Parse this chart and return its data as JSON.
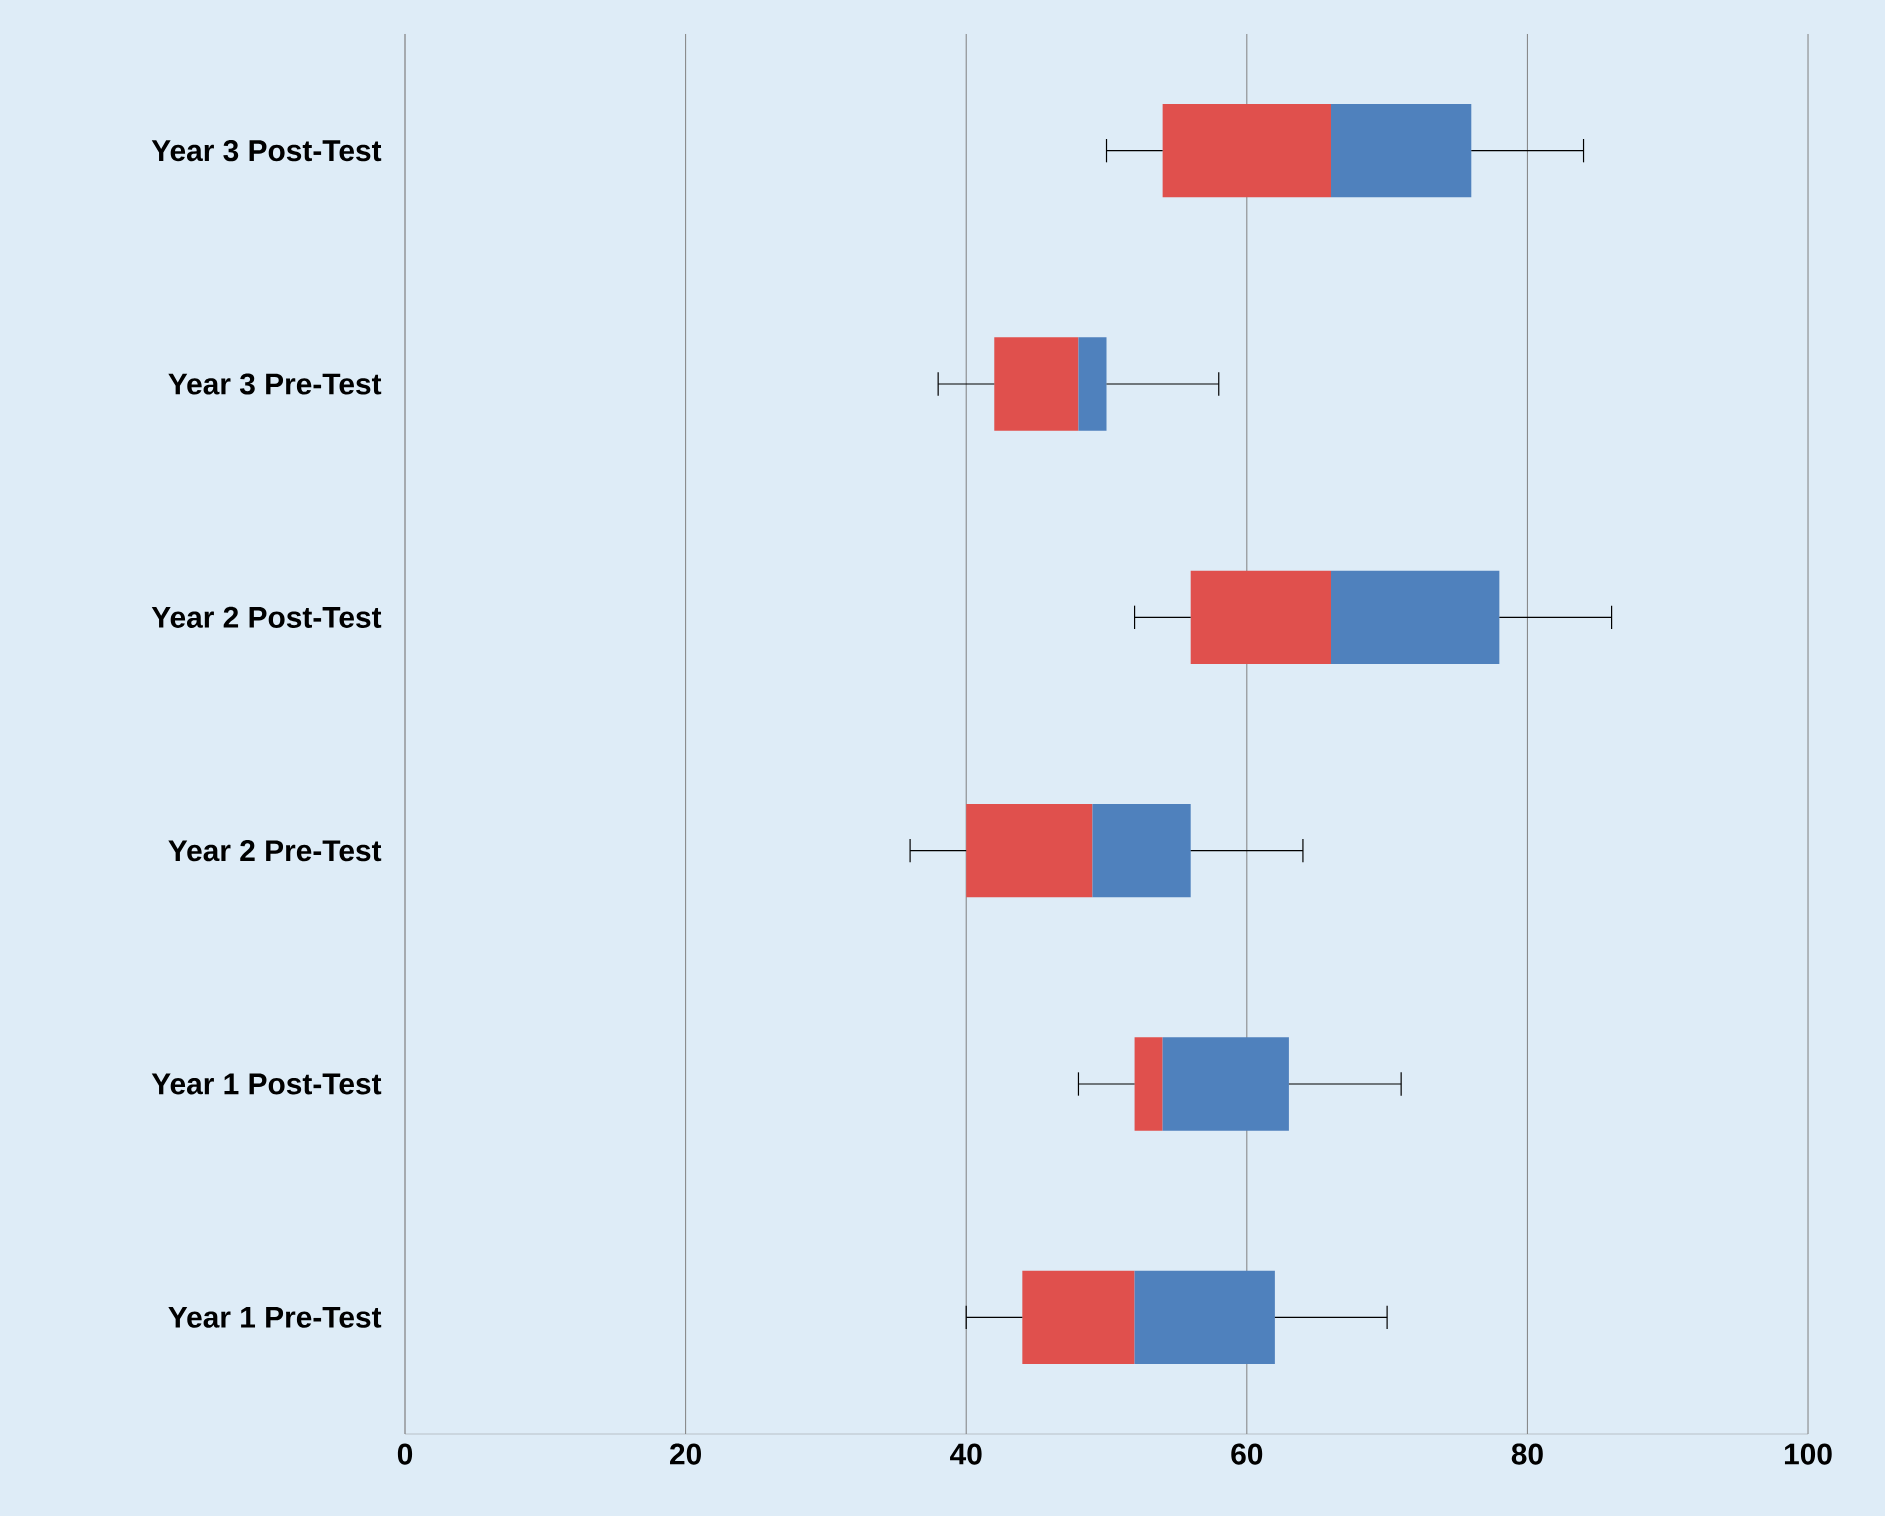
{
  "chart_data": {
    "type": "box",
    "orientation": "horizontal",
    "categories": [
      "Year 3 Post-Test",
      "Year 3 Pre-Test",
      "Year 2 Post-Test",
      "Year 2 Pre-Test",
      "Year 1 Post-Test",
      "Year 1 Pre-Test"
    ],
    "series": [
      {
        "color": "#4f81bd",
        "colors": [
          "#e0504d",
          "#e0504d",
          "#e0504d",
          "#e0504d",
          "#e0504d",
          "#e0504d"
        ],
        "boxes": [
          {
            "low": 50,
            "q1": 54,
            "median": 66,
            "q3": 76,
            "high": 84
          },
          {
            "low": 38,
            "q1": 42,
            "median": 48,
            "q3": 50,
            "high": 58
          },
          {
            "low": 52,
            "q1": 56,
            "median": 66,
            "q3": 78,
            "high": 86
          },
          {
            "low": 36,
            "q1": 40,
            "median": 49,
            "q3": 56,
            "high": 64
          },
          {
            "low": 48,
            "q1": 52,
            "median": 54,
            "q3": 63,
            "high": 71
          },
          {
            "low": 40,
            "q1": 44,
            "median": 52,
            "q3": 62,
            "high": 70
          }
        ]
      }
    ],
    "xlim": [
      0,
      100
    ],
    "xticks": [
      0,
      20,
      40,
      60,
      80,
      100
    ],
    "grid": "x"
  }
}
